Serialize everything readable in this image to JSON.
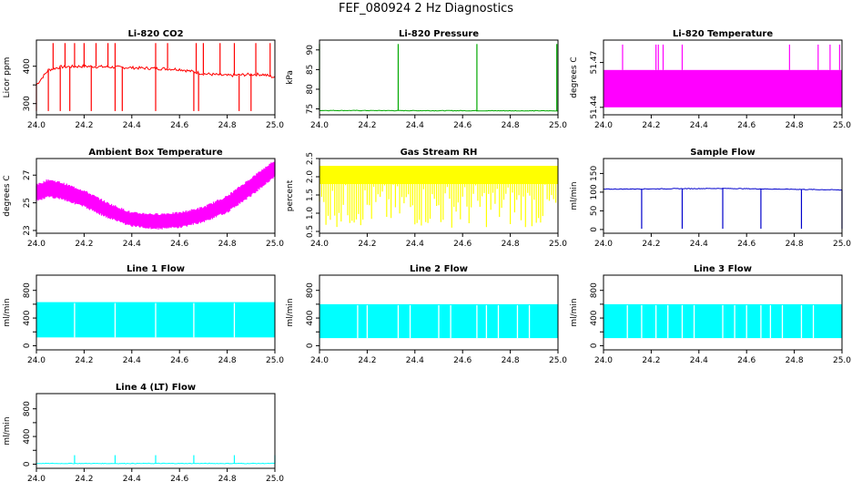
{
  "title": "FEF_080924  2 Hz Diagnostics",
  "chart_data": [
    {
      "type": "line",
      "title": "Li-820 CO2",
      "ylabel": "Licor ppm",
      "color": "#ff0000",
      "xlim": [
        24.0,
        25.0
      ],
      "ylim": [
        270,
        470
      ],
      "xticks": [
        24.0,
        24.2,
        24.4,
        24.6,
        24.8,
        25.0
      ],
      "xtick_labels": [
        "24.0",
        "24.2",
        "24.4",
        "24.6",
        "24.8",
        "25.0"
      ],
      "yticks": [
        300,
        350,
        400
      ],
      "ytick_labels": [
        "300",
        "",
        "400"
      ],
      "series": [
        {
          "x": [
            24.0,
            24.05,
            24.1,
            24.2,
            24.3,
            24.4,
            24.5,
            24.6,
            24.66,
            24.7,
            24.8,
            24.9,
            24.95,
            25.0
          ],
          "y": [
            350,
            390,
            398,
            400,
            398,
            396,
            394,
            392,
            385,
            380,
            375,
            378,
            378,
            370
          ]
        }
      ],
      "spikes_up": [
        24.07,
        24.12,
        24.16,
        24.2,
        24.25,
        24.3,
        24.33,
        24.5,
        24.55,
        24.67,
        24.7,
        24.77,
        24.83,
        24.92,
        24.98
      ],
      "spikes_down": [
        24.0,
        24.05,
        24.1,
        24.14,
        24.23,
        24.33,
        24.36,
        24.5,
        24.66,
        24.68,
        24.85,
        24.9
      ]
    },
    {
      "type": "line",
      "title": "Li-820 Pressure",
      "ylabel": "kPa",
      "color": "#00a800",
      "xlim": [
        24.0,
        25.0
      ],
      "ylim": [
        73.5,
        92.5
      ],
      "xticks": [
        24.0,
        24.2,
        24.4,
        24.6,
        24.8,
        25.0
      ],
      "xtick_labels": [
        "24.0",
        "24.2",
        "24.4",
        "24.6",
        "24.8",
        "25.0"
      ],
      "yticks": [
        75,
        80,
        85,
        90
      ],
      "ytick_labels": [
        "75",
        "80",
        "85",
        "90"
      ],
      "series": [
        {
          "x": [
            24.0,
            25.0
          ],
          "y": [
            74.6,
            74.5
          ]
        }
      ],
      "spikes_up": [
        24.0,
        24.33,
        24.66,
        24.995
      ],
      "spike_peak": 91.5
    },
    {
      "type": "line",
      "title": "Li-820 Temperature",
      "ylabel": "degrees C",
      "color": "#ff00ff",
      "xlim": [
        24.0,
        25.0
      ],
      "ylim": [
        51.435,
        51.485
      ],
      "xticks": [
        24.0,
        24.2,
        24.4,
        24.6,
        24.8,
        25.0
      ],
      "xtick_labels": [
        "24.0",
        "24.2",
        "24.4",
        "24.6",
        "24.8",
        "25.0"
      ],
      "yticks": [
        51.44,
        51.47
      ],
      "ytick_labels": [
        "51.44",
        "51.47"
      ],
      "band": [
        51.44,
        51.465
      ],
      "spikes_up": [
        24.08,
        24.22,
        24.23,
        24.25,
        24.33,
        24.78,
        24.9,
        24.95,
        24.99
      ],
      "spike_peak": 51.482
    },
    {
      "type": "area",
      "title": "Ambient Box Temperature",
      "ylabel": "degrees C",
      "color": "#ff00ff",
      "xlim": [
        24.0,
        25.0
      ],
      "ylim": [
        22.8,
        28.2
      ],
      "xticks": [
        24.0,
        24.2,
        24.4,
        24.6,
        24.8,
        25.0
      ],
      "xtick_labels": [
        "24.0",
        "24.2",
        "24.4",
        "24.6",
        "24.8",
        "25.0"
      ],
      "yticks": [
        23,
        25,
        27
      ],
      "ytick_labels": [
        "23",
        "25",
        "27"
      ],
      "series": [
        {
          "x": [
            24.0,
            24.05,
            24.1,
            24.2,
            24.3,
            24.4,
            24.5,
            24.6,
            24.7,
            24.8,
            24.9,
            25.0
          ],
          "y_low": [
            25.2,
            25.5,
            25.4,
            24.8,
            24.0,
            23.4,
            23.2,
            23.3,
            23.7,
            24.4,
            25.6,
            27.0
          ],
          "y_high": [
            26.2,
            26.6,
            26.4,
            25.8,
            24.9,
            24.2,
            24.1,
            24.2,
            24.6,
            25.4,
            26.7,
            28.0
          ]
        }
      ]
    },
    {
      "type": "area",
      "title": "Gas Stream RH",
      "ylabel": "percent",
      "color": "#ffff00",
      "xlim": [
        24.0,
        25.0
      ],
      "ylim": [
        0.45,
        2.5
      ],
      "xticks": [
        24.0,
        24.2,
        24.4,
        24.6,
        24.8,
        25.0
      ],
      "xtick_labels": [
        "24.0",
        "24.2",
        "24.4",
        "24.6",
        "24.8",
        "25.0"
      ],
      "yticks": [
        0.5,
        1.0,
        1.5,
        2.0,
        2.5
      ],
      "ytick_labels": [
        "0.5",
        "1.0",
        "1.5",
        "2.0",
        "2.5"
      ],
      "band": [
        1.8,
        2.3
      ],
      "dips_to": 0.6
    },
    {
      "type": "line",
      "title": "Sample Flow",
      "ylabel": "ml/min",
      "color": "#0000cc",
      "xlim": [
        24.0,
        25.0
      ],
      "ylim": [
        -10,
        190
      ],
      "xticks": [
        24.0,
        24.2,
        24.4,
        24.6,
        24.8,
        25.0
      ],
      "xtick_labels": [
        "24.0",
        "24.2",
        "24.4",
        "24.6",
        "24.8",
        "25.0"
      ],
      "yticks": [
        0,
        50,
        100,
        150
      ],
      "ytick_labels": [
        "0",
        "50",
        "100",
        "150"
      ],
      "series": [
        {
          "x": [
            24.0,
            24.5,
            25.0
          ],
          "y": [
            108,
            110,
            106
          ]
        }
      ],
      "spikes_down": [
        24.16,
        24.33,
        24.5,
        24.66,
        24.83,
        25.0
      ],
      "spike_floor": 2
    },
    {
      "type": "area",
      "title": "Line 1 Flow",
      "ylabel": "ml/min",
      "color": "#00ffff",
      "xlim": [
        24.0,
        25.0
      ],
      "ylim": [
        -60,
        1020
      ],
      "xticks": [
        24.0,
        24.2,
        24.4,
        24.6,
        24.8,
        25.0
      ],
      "xtick_labels": [
        "24.0",
        "24.2",
        "24.4",
        "24.6",
        "24.8",
        "25.0"
      ],
      "yticks": [
        0,
        200,
        400,
        600,
        800
      ],
      "ytick_labels": [
        "0",
        "",
        "400",
        "",
        "800"
      ],
      "band": [
        120,
        630
      ],
      "gaps": [
        24.16,
        24.33,
        24.5,
        24.66,
        24.83
      ]
    },
    {
      "type": "area",
      "title": "Line 2 Flow",
      "ylabel": "ml/min",
      "color": "#00ffff",
      "xlim": [
        24.0,
        25.0
      ],
      "ylim": [
        -60,
        1020
      ],
      "xticks": [
        24.0,
        24.2,
        24.4,
        24.6,
        24.8,
        25.0
      ],
      "xtick_labels": [
        "24.0",
        "24.2",
        "24.4",
        "24.6",
        "24.8",
        "25.0"
      ],
      "yticks": [
        0,
        200,
        400,
        600,
        800
      ],
      "ytick_labels": [
        "0",
        "",
        "400",
        "",
        "800"
      ],
      "band": [
        110,
        600
      ],
      "gaps": [
        24.16,
        24.2,
        24.33,
        24.38,
        24.5,
        24.55,
        24.66,
        24.7,
        24.75,
        24.83,
        24.88
      ]
    },
    {
      "type": "area",
      "title": "Line 3 Flow",
      "ylabel": "ml/min",
      "color": "#00ffff",
      "xlim": [
        24.0,
        25.0
      ],
      "ylim": [
        -60,
        1020
      ],
      "xticks": [
        24.0,
        24.2,
        24.4,
        24.6,
        24.8,
        25.0
      ],
      "xtick_labels": [
        "24.0",
        "24.2",
        "24.4",
        "24.6",
        "24.8",
        "25.0"
      ],
      "yticks": [
        0,
        200,
        400,
        600,
        800
      ],
      "ytick_labels": [
        "0",
        "",
        "400",
        "",
        "800"
      ],
      "band": [
        110,
        600
      ],
      "gaps": [
        24.1,
        24.16,
        24.22,
        24.27,
        24.33,
        24.38,
        24.5,
        24.55,
        24.6,
        24.66,
        24.7,
        24.75,
        24.83,
        24.88
      ]
    },
    {
      "type": "line",
      "title": "Line 4 (LT) Flow",
      "ylabel": "ml/min",
      "color": "#00ffff",
      "xlim": [
        24.0,
        25.0
      ],
      "ylim": [
        -60,
        1020
      ],
      "xticks": [
        24.0,
        24.2,
        24.4,
        24.6,
        24.8,
        25.0
      ],
      "xtick_labels": [
        "24.0",
        "24.2",
        "24.4",
        "24.6",
        "24.8",
        "25.0"
      ],
      "yticks": [
        0,
        200,
        400,
        600,
        800
      ],
      "ytick_labels": [
        "0",
        "",
        "400",
        "",
        "800"
      ],
      "series": [
        {
          "x": [
            24.0,
            25.0
          ],
          "y": [
            10,
            10
          ]
        }
      ],
      "spikes_up": [
        24.16,
        24.33,
        24.5,
        24.66,
        24.83,
        25.0
      ],
      "spike_peak": 130
    }
  ]
}
